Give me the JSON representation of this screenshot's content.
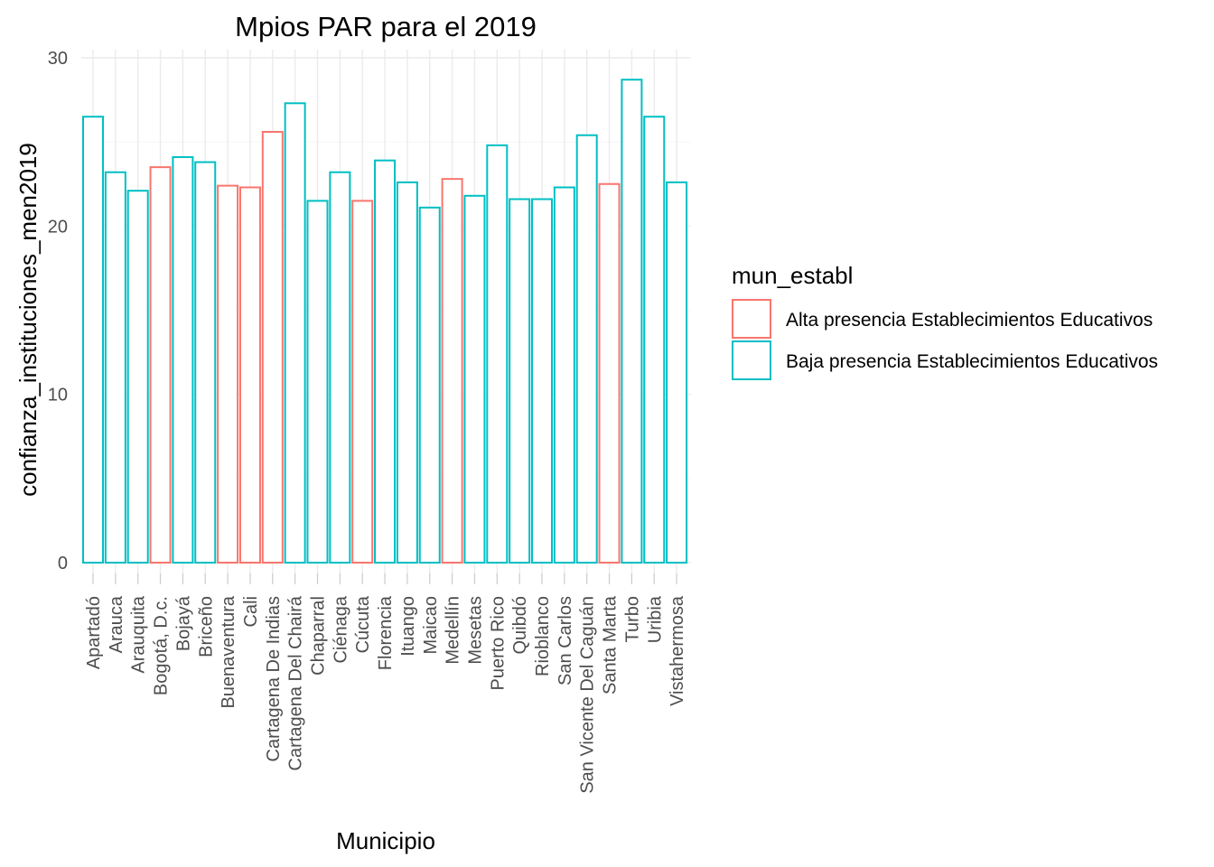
{
  "chart_data": {
    "type": "bar",
    "title": "Mpios PAR para el 2019",
    "xlabel": "Municipio",
    "ylabel": "confianza_instituciones_men2019",
    "ylim": [
      0,
      30
    ],
    "yticks": [
      0,
      10,
      20,
      30
    ],
    "grid": true,
    "legend": {
      "title": "mun_establ",
      "position": "right",
      "entries": [
        {
          "label": "Alta presencia Establecimientos Educativos",
          "color": "#F8766D"
        },
        {
          "label": "Baja presencia Establecimientos Educativos",
          "color": "#00BFC4"
        }
      ]
    },
    "categories": [
      "Apartadó",
      "Arauca",
      "Arauquita",
      "Bogotá, D.c.",
      "Bojayá",
      "Briceño",
      "Buenaventura",
      "Cali",
      "Cartagena De Indias",
      "Cartagena Del Chairá",
      "Chaparral",
      "Ciénaga",
      "Cúcuta",
      "Florencia",
      "Ituango",
      "Maicao",
      "Medellín",
      "Mesetas",
      "Puerto Rico",
      "Quibdó",
      "Rioblanco",
      "San Carlos",
      "San Vicente Del Caguán",
      "Santa Marta",
      "Turbo",
      "Uribia",
      "Vistahermosa"
    ],
    "values": [
      26.5,
      23.2,
      22.1,
      23.5,
      24.1,
      23.8,
      22.4,
      22.3,
      25.6,
      27.3,
      21.5,
      23.2,
      21.5,
      23.9,
      22.6,
      21.1,
      22.8,
      21.8,
      24.8,
      21.6,
      21.6,
      22.3,
      25.4,
      22.5,
      28.7,
      26.5,
      22.6
    ],
    "groups": [
      1,
      1,
      1,
      0,
      1,
      1,
      0,
      0,
      0,
      1,
      1,
      1,
      0,
      1,
      1,
      1,
      0,
      1,
      1,
      1,
      1,
      1,
      1,
      0,
      1,
      1,
      1
    ]
  }
}
